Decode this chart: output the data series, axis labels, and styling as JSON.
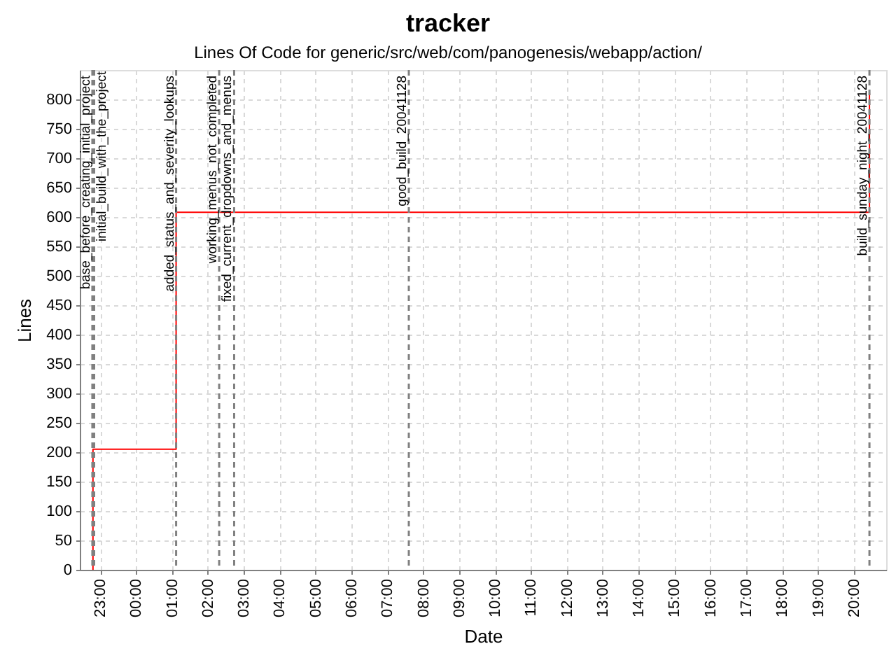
{
  "chart_data": {
    "type": "step",
    "title": "tracker",
    "subtitle": "Lines Of Code for generic/src/web/com/panogenesis/webapp/action/",
    "xlabel": "Date",
    "ylabel": "Lines",
    "series": [
      {
        "color": "#ff0000",
        "x": [
          "2004-11-27T22:48",
          "2004-11-27T22:48",
          "2004-11-28T01:07",
          "2004-11-28T20:26"
        ],
        "values": [
          0,
          205,
          608,
          811
        ]
      }
    ],
    "xlim": [
      "2004-11-27T22:26",
      "2004-11-28T20:54"
    ],
    "xticks": [
      {
        "value": "2004-11-27T23:00",
        "label": "23:00"
      },
      {
        "value": "2004-11-28T00:00",
        "label": "00:00"
      },
      {
        "value": "2004-11-28T01:00",
        "label": "01:00"
      },
      {
        "value": "2004-11-28T02:00",
        "label": "02:00"
      },
      {
        "value": "2004-11-28T03:00",
        "label": "03:00"
      },
      {
        "value": "2004-11-28T04:00",
        "label": "04:00"
      },
      {
        "value": "2004-11-28T05:00",
        "label": "05:00"
      },
      {
        "value": "2004-11-28T06:00",
        "label": "06:00"
      },
      {
        "value": "2004-11-28T07:00",
        "label": "07:00"
      },
      {
        "value": "2004-11-28T08:00",
        "label": "08:00"
      },
      {
        "value": "2004-11-28T09:00",
        "label": "09:00"
      },
      {
        "value": "2004-11-28T10:00",
        "label": "10:00"
      },
      {
        "value": "2004-11-28T11:00",
        "label": "11:00"
      },
      {
        "value": "2004-11-28T12:00",
        "label": "12:00"
      },
      {
        "value": "2004-11-28T13:00",
        "label": "13:00"
      },
      {
        "value": "2004-11-28T14:00",
        "label": "14:00"
      },
      {
        "value": "2004-11-28T15:00",
        "label": "15:00"
      },
      {
        "value": "2004-11-28T16:00",
        "label": "16:00"
      },
      {
        "value": "2004-11-28T17:00",
        "label": "17:00"
      },
      {
        "value": "2004-11-28T18:00",
        "label": "18:00"
      },
      {
        "value": "2004-11-28T19:00",
        "label": "19:00"
      },
      {
        "value": "2004-11-28T20:00",
        "label": "20:00"
      }
    ],
    "ylim": [
      0,
      850
    ],
    "yticks": [
      0,
      50,
      100,
      150,
      200,
      250,
      300,
      350,
      400,
      450,
      500,
      550,
      600,
      650,
      700,
      750,
      800
    ],
    "grid": true,
    "ref_lines": [
      {
        "axis": "x",
        "value": "2004-11-27T22:47",
        "label": "base_before_creating_initial_project",
        "color": "#808080",
        "line_style": "dashed"
      },
      {
        "axis": "x",
        "value": "2004-11-27T22:50",
        "label": "initial_build_with_the_project",
        "color": "#808080",
        "line_style": "dashed"
      },
      {
        "axis": "x",
        "value": "2004-11-28T01:07",
        "label": "added_status_and_severity_lookups",
        "color": "#808080",
        "line_style": "dashed"
      },
      {
        "axis": "x",
        "value": "2004-11-28T02:19",
        "label": "working_menus_not_completed",
        "color": "#808080",
        "line_style": "dashed"
      },
      {
        "axis": "x",
        "value": "2004-11-28T02:44",
        "label": "fixed_current_dropdowns_and_menus",
        "color": "#808080",
        "line_style": "dashed"
      },
      {
        "axis": "x",
        "value": "2004-11-28T07:36",
        "label": "good_build_20041128",
        "color": "#808080",
        "line_style": "dashed"
      },
      {
        "axis": "x",
        "value": "2004-11-28T20:26",
        "label": "build_sunday_night_20041128",
        "color": "#808080",
        "line_style": "dashed"
      }
    ]
  }
}
